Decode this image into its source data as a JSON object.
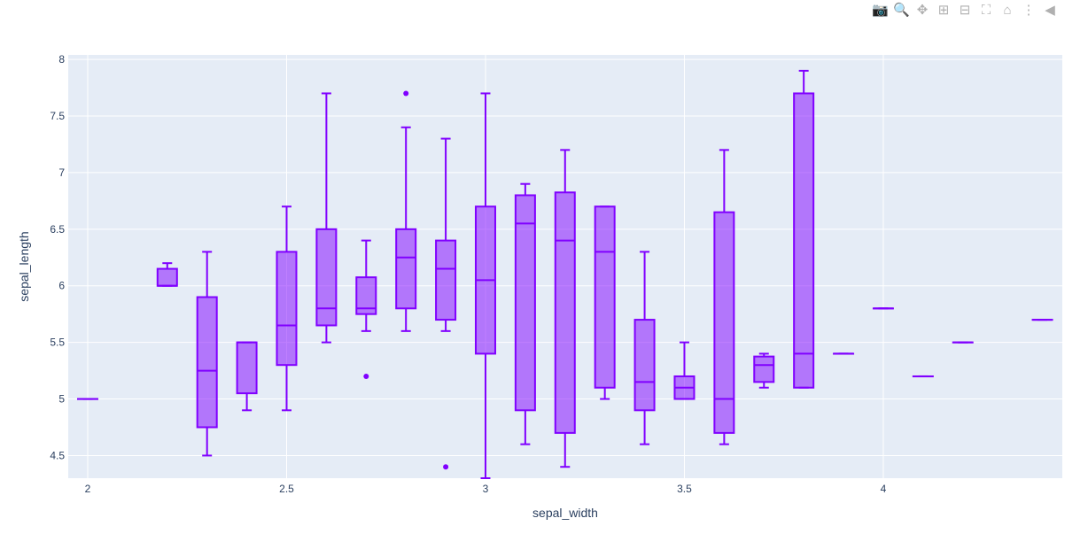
{
  "modebar": [
    {
      "name": "camera-icon",
      "glyph": "📷"
    },
    {
      "name": "zoom-icon",
      "glyph": "🔍"
    },
    {
      "name": "pan-icon",
      "glyph": "✥"
    },
    {
      "name": "zoom-in-icon",
      "glyph": "⊞"
    },
    {
      "name": "zoom-out-icon",
      "glyph": "⊟"
    },
    {
      "name": "autoscale-icon",
      "glyph": "⛶"
    },
    {
      "name": "home-icon",
      "glyph": "⌂"
    },
    {
      "name": "spike-lines-icon",
      "glyph": "⋮"
    },
    {
      "name": "hover-closest-icon",
      "glyph": "◀"
    }
  ],
  "colors": {
    "box": "#8000ff",
    "fill": "rgba(128,0,255,0.5)",
    "plot_bg": "#e5ecf6",
    "grid": "#ffffff"
  },
  "chart_data": {
    "type": "box",
    "xlabel": "sepal_width",
    "ylabel": "sepal_length",
    "xlim": [
      1.951,
      4.45
    ],
    "ylim": [
      4.3,
      8.04
    ],
    "xticks": [
      2,
      2.5,
      3,
      3.5,
      4
    ],
    "xtick_labels": [
      "2",
      "2.5",
      "3",
      "3.5",
      "4"
    ],
    "yticks": [
      4.5,
      5,
      5.5,
      6,
      6.5,
      7,
      7.5,
      8
    ],
    "ytick_labels": [
      "4.5",
      "5",
      "5.5",
      "6",
      "6.5",
      "7",
      "7.5",
      "8"
    ],
    "grid": true,
    "boxes": [
      {
        "x": 2.0,
        "min": 5.0,
        "q1": 5.0,
        "median": 5.0,
        "q3": 5.0,
        "max": 5.0,
        "outliers": []
      },
      {
        "x": 2.2,
        "min": 6.0,
        "q1": 6.0,
        "median": 6.0,
        "q3": 6.15,
        "max": 6.2,
        "outliers": []
      },
      {
        "x": 2.3,
        "min": 4.5,
        "q1": 4.75,
        "median": 5.25,
        "q3": 5.9,
        "max": 6.3,
        "outliers": []
      },
      {
        "x": 2.4,
        "min": 4.9,
        "q1": 5.05,
        "median": 5.5,
        "q3": 5.5,
        "max": 5.5,
        "outliers": []
      },
      {
        "x": 2.5,
        "min": 4.9,
        "q1": 5.3,
        "median": 5.65,
        "q3": 6.3,
        "max": 6.7,
        "outliers": []
      },
      {
        "x": 2.6,
        "min": 5.5,
        "q1": 5.65,
        "median": 5.8,
        "q3": 6.5,
        "max": 7.7,
        "outliers": []
      },
      {
        "x": 2.7,
        "min": 5.6,
        "q1": 5.75,
        "median": 5.8,
        "q3": 6.075,
        "max": 6.4,
        "outliers": [
          5.2
        ]
      },
      {
        "x": 2.8,
        "min": 5.6,
        "q1": 5.8,
        "median": 6.25,
        "q3": 6.5,
        "max": 7.4,
        "outliers": [
          7.7
        ]
      },
      {
        "x": 2.9,
        "min": 5.6,
        "q1": 5.7,
        "median": 6.15,
        "q3": 6.4,
        "max": 7.3,
        "outliers": [
          4.4
        ]
      },
      {
        "x": 3.0,
        "min": 4.3,
        "q1": 5.4,
        "median": 6.05,
        "q3": 6.7,
        "max": 7.7,
        "outliers": []
      },
      {
        "x": 3.1,
        "min": 4.6,
        "q1": 4.9,
        "median": 6.55,
        "q3": 6.8,
        "max": 6.9,
        "outliers": []
      },
      {
        "x": 3.2,
        "min": 4.4,
        "q1": 4.7,
        "median": 6.4,
        "q3": 6.825,
        "max": 7.2,
        "outliers": []
      },
      {
        "x": 3.3,
        "min": 5.0,
        "q1": 5.1,
        "median": 6.3,
        "q3": 6.7,
        "max": 6.7,
        "outliers": []
      },
      {
        "x": 3.4,
        "min": 4.6,
        "q1": 4.9,
        "median": 5.15,
        "q3": 5.7,
        "max": 6.3,
        "outliers": []
      },
      {
        "x": 3.5,
        "min": 5.0,
        "q1": 5.0,
        "median": 5.1,
        "q3": 5.2,
        "max": 5.5,
        "outliers": []
      },
      {
        "x": 3.6,
        "min": 4.6,
        "q1": 4.7,
        "median": 5.0,
        "q3": 6.65,
        "max": 7.2,
        "outliers": []
      },
      {
        "x": 3.7,
        "min": 5.1,
        "q1": 5.15,
        "median": 5.3,
        "q3": 5.375,
        "max": 5.4,
        "outliers": []
      },
      {
        "x": 3.8,
        "min": 5.1,
        "q1": 5.1,
        "median": 5.4,
        "q3": 7.7,
        "max": 7.9,
        "outliers": []
      },
      {
        "x": 3.9,
        "min": 5.4,
        "q1": 5.4,
        "median": 5.4,
        "q3": 5.4,
        "max": 5.4,
        "outliers": []
      },
      {
        "x": 4.0,
        "min": 5.8,
        "q1": 5.8,
        "median": 5.8,
        "q3": 5.8,
        "max": 5.8,
        "outliers": []
      },
      {
        "x": 4.1,
        "min": 5.2,
        "q1": 5.2,
        "median": 5.2,
        "q3": 5.2,
        "max": 5.2,
        "outliers": []
      },
      {
        "x": 4.2,
        "min": 5.5,
        "q1": 5.5,
        "median": 5.5,
        "q3": 5.5,
        "max": 5.5,
        "outliers": []
      },
      {
        "x": 4.4,
        "min": 5.7,
        "q1": 5.7,
        "median": 5.7,
        "q3": 5.7,
        "max": 5.7,
        "outliers": []
      }
    ]
  }
}
